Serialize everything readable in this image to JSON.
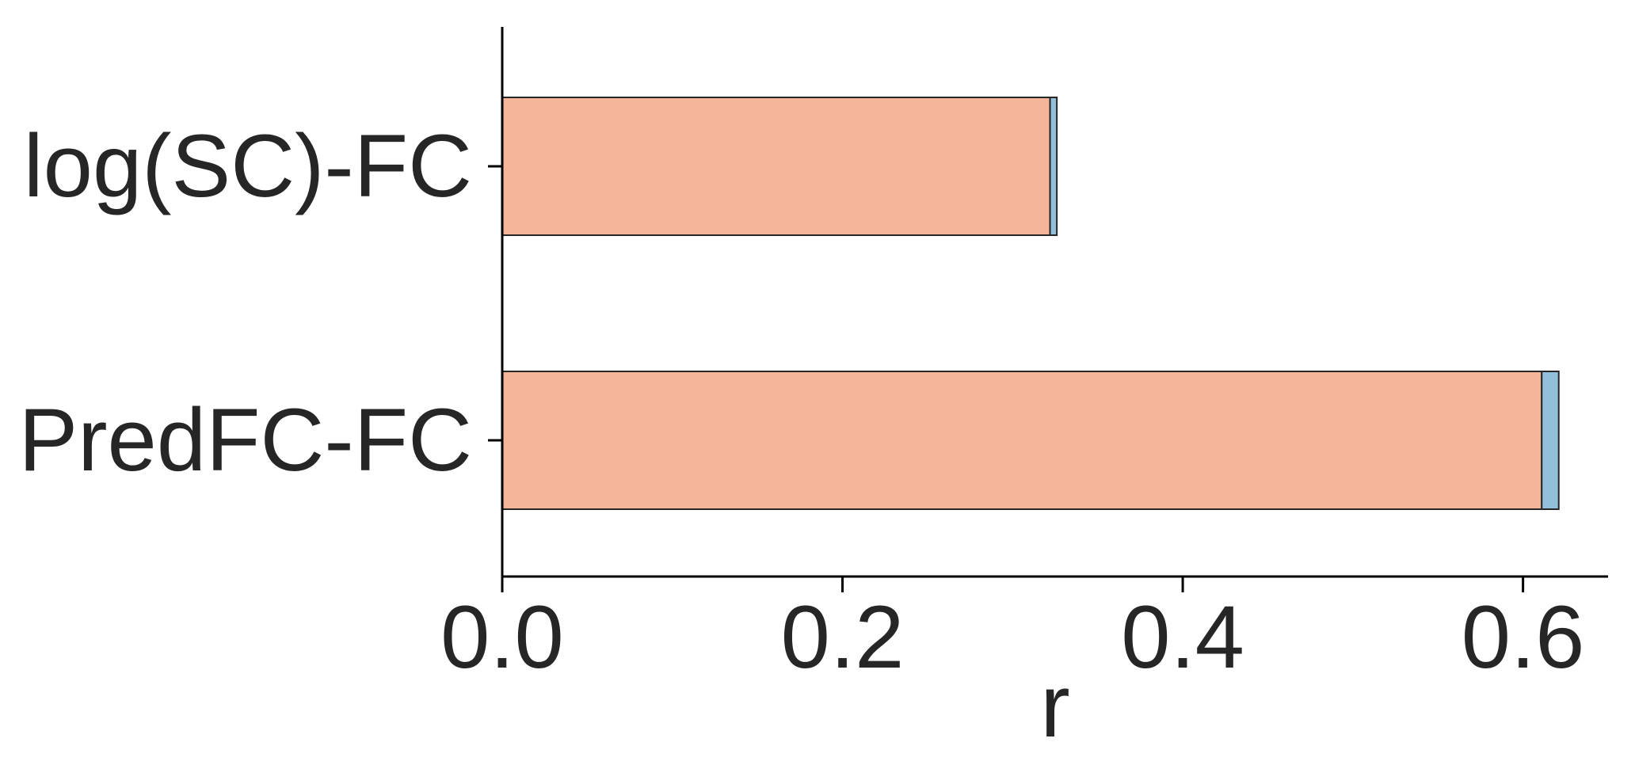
{
  "chart_data": {
    "type": "bar",
    "orientation": "horizontal",
    "stacked": true,
    "categories": [
      "log(SC)-FC",
      "PredFC-FC"
    ],
    "series": [
      {
        "values": [
          0.322,
          0.611
        ],
        "color": "#f4b59b"
      },
      {
        "values": [
          0.004,
          0.01
        ],
        "color": "#92c0da"
      }
    ],
    "title": "",
    "xlabel": "r",
    "ylabel": "",
    "xlim": [
      0,
      0.65
    ],
    "xticks": [
      0.0,
      0.2,
      0.4,
      0.6
    ],
    "xtick_labels": [
      "0.0",
      "0.2",
      "0.4",
      "0.6"
    ],
    "grid": false,
    "legend": "none"
  }
}
